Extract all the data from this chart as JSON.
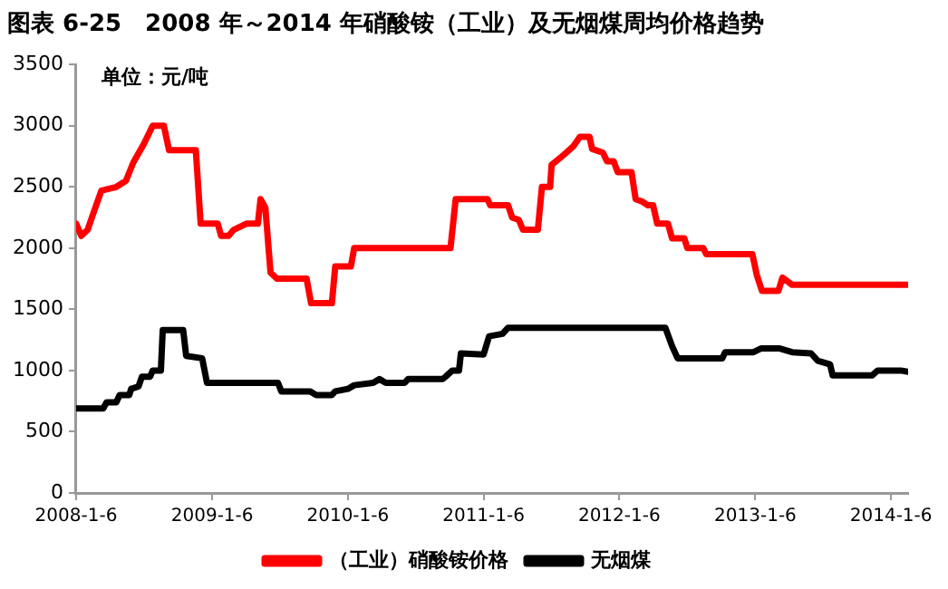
{
  "chart_data": {
    "type": "line",
    "title": "图表 6-25　2008 年～2014 年硝酸铵（工业）及无烟煤周均价格趋势",
    "annotations": [
      "单位：元/吨"
    ],
    "xlim": [
      "2008-01-06",
      "2014-02-21"
    ],
    "xticks": [
      {
        "value": "2008-01-06",
        "label": "2008-1-6"
      },
      {
        "value": "2009-01-06",
        "label": "2009-1-6"
      },
      {
        "value": "2010-01-06",
        "label": "2010-1-6"
      },
      {
        "value": "2011-01-06",
        "label": "2011-1-6"
      },
      {
        "value": "2012-01-06",
        "label": "2012-1-6"
      },
      {
        "value": "2013-01-06",
        "label": "2013-1-6"
      },
      {
        "value": "2014-01-06",
        "label": "2014-1-6"
      }
    ],
    "ylim": [
      0,
      3500
    ],
    "yticks": [
      0,
      500,
      1000,
      1500,
      2000,
      2500,
      3000,
      3500
    ],
    "grid": false,
    "legend": "bottom",
    "marker": "none",
    "line_style": "solid",
    "series": [
      {
        "name": "（工业）硝酸铵价格",
        "color": "#ff0000",
        "x": [
          "2008-01-06",
          "2008-01-20",
          "2008-02-06",
          "2008-02-23",
          "2008-03-14",
          "2008-04-23",
          "2008-05-19",
          "2008-06-08",
          "2008-07-06",
          "2008-07-30",
          "2008-08-29",
          "2008-09-12",
          "2008-11-23",
          "2008-12-06",
          "2009-01-21",
          "2009-01-30",
          "2009-02-19",
          "2009-03-05",
          "2009-04-08",
          "2009-05-09",
          "2009-05-16",
          "2009-05-29",
          "2009-06-12",
          "2009-06-29",
          "2009-09-17",
          "2009-09-29",
          "2009-11-24",
          "2009-12-03",
          "2010-01-14",
          "2010-01-23",
          "2010-10-09",
          "2010-10-23",
          "2011-01-17",
          "2011-01-24",
          "2011-03-13",
          "2011-03-24",
          "2011-04-11",
          "2011-04-22",
          "2011-06-01",
          "2011-06-12",
          "2011-07-04",
          "2011-07-08",
          "2011-08-09",
          "2011-09-04",
          "2011-09-22",
          "2011-10-18",
          "2011-10-25",
          "2011-11-23",
          "2011-12-04",
          "2011-12-22",
          "2012-01-02",
          "2012-02-08",
          "2012-02-19",
          "2012-03-08",
          "2012-03-23",
          "2012-04-06",
          "2012-04-17",
          "2012-05-16",
          "2012-05-27",
          "2012-06-29",
          "2012-07-07",
          "2012-08-19",
          "2012-08-27",
          "2012-12-29",
          "2013-01-10",
          "2013-01-24",
          "2013-03-09",
          "2013-03-20",
          "2013-04-15",
          "2014-02-21"
        ],
        "values": [
          2200,
          2100,
          2150,
          2300,
          2470,
          2500,
          2550,
          2700,
          2850,
          3000,
          3000,
          2800,
          2800,
          2200,
          2200,
          2100,
          2100,
          2150,
          2200,
          2200,
          2400,
          2330,
          1800,
          1750,
          1750,
          1550,
          1550,
          1850,
          1850,
          2000,
          2000,
          2400,
          2400,
          2350,
          2350,
          2250,
          2230,
          2150,
          2150,
          2500,
          2500,
          2680,
          2760,
          2830,
          2910,
          2910,
          2810,
          2780,
          2710,
          2710,
          2620,
          2620,
          2400,
          2380,
          2350,
          2350,
          2200,
          2200,
          2080,
          2080,
          2000,
          2000,
          1950,
          1950,
          1780,
          1650,
          1650,
          1760,
          1700,
          1700
        ]
      },
      {
        "name": "无烟煤",
        "color": "#000000",
        "x": [
          "2008-01-06",
          "2008-03-19",
          "2008-03-28",
          "2008-04-23",
          "2008-05-02",
          "2008-05-28",
          "2008-06-02",
          "2008-06-22",
          "2008-07-01",
          "2008-07-23",
          "2008-07-30",
          "2008-08-21",
          "2008-08-26",
          "2008-10-20",
          "2008-10-28",
          "2008-12-10",
          "2008-12-23",
          "2009-07-02",
          "2009-07-11",
          "2009-09-26",
          "2009-10-13",
          "2009-11-24",
          "2009-12-03",
          "2010-01-06",
          "2010-01-23",
          "2010-03-15",
          "2010-04-01",
          "2010-04-18",
          "2010-06-08",
          "2010-06-17",
          "2010-09-18",
          "2010-09-26",
          "2010-10-14",
          "2010-11-01",
          "2010-11-06",
          "2011-01-06",
          "2011-01-21",
          "2011-02-26",
          "2011-03-13",
          "2012-05-09",
          "2012-05-27",
          "2012-06-11",
          "2012-10-09",
          "2012-10-17",
          "2013-01-01",
          "2013-01-21",
          "2013-03-13",
          "2013-04-15",
          "2013-06-05",
          "2013-06-23",
          "2013-07-26",
          "2013-08-02",
          "2013-11-16",
          "2013-12-01",
          "2014-02-01",
          "2014-02-21"
        ],
        "values": [
          690,
          690,
          740,
          740,
          800,
          800,
          850,
          870,
          950,
          950,
          1000,
          1000,
          1330,
          1330,
          1120,
          1100,
          900,
          900,
          830,
          830,
          800,
          800,
          830,
          850,
          880,
          900,
          930,
          900,
          900,
          930,
          930,
          950,
          1000,
          1000,
          1140,
          1130,
          1280,
          1300,
          1350,
          1350,
          1200,
          1100,
          1100,
          1150,
          1150,
          1180,
          1180,
          1150,
          1140,
          1080,
          1050,
          960,
          960,
          1000,
          1000,
          990
        ]
      }
    ]
  }
}
